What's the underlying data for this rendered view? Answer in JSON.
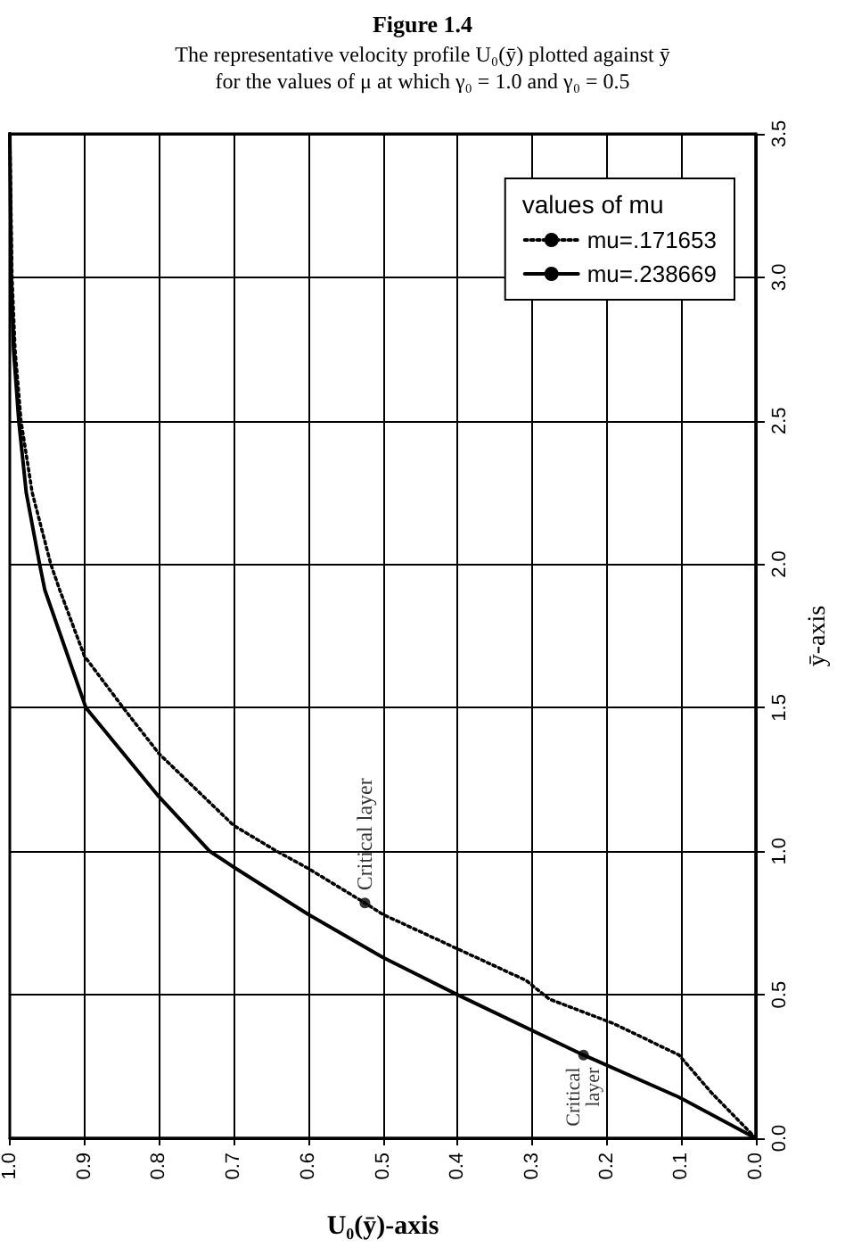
{
  "chart_data": {
    "type": "line",
    "title": "Figure 1.4",
    "subtitle": "The representative velocity profile U₀(ȳ) plotted against ȳ\nfor the values of μ at which γ₀ = 1.0 and γ₀ = 0.5",
    "xlabel": "U₀(ȳ)-axis",
    "ylabel": "ȳ-axis",
    "legend_title": "values of mu",
    "xlim": [
      1.0,
      0.0
    ],
    "xticks": [
      {
        "value": 1.0,
        "label": "1.0"
      },
      0.9,
      0.8,
      0.7,
      0.6,
      0.5,
      0.4,
      0.3,
      0.2,
      0.1,
      {
        "value": 0.0,
        "label": "0.0"
      }
    ],
    "ylim": [
      0,
      3.5
    ],
    "yticks": [
      {
        "value": 0,
        "label": "0.0"
      },
      0.5,
      {
        "value": 1,
        "label": "1.0"
      },
      1.5,
      {
        "value": 2,
        "label": "2.0"
      },
      2.5,
      {
        "value": 3,
        "label": "3.0"
      },
      3.5
    ],
    "series": [
      {
        "name": "mu=.171653",
        "color": "#000000",
        "line_style": "dotted",
        "x": [
          0,
          0.03,
          0.06,
          0.103,
          0.191,
          0.277,
          0.308,
          0.4,
          0.5,
          0.524,
          0.6,
          0.642,
          0.7,
          0.8,
          0.848,
          0.9,
          0.933,
          0.945,
          0.97,
          0.985,
          0.993,
          0.997,
          1.0
        ],
        "values": [
          0,
          0.08,
          0.16,
          0.29,
          0.4,
          0.485,
          0.55,
          0.66,
          0.78,
          0.82,
          0.94,
          1.0,
          1.09,
          1.34,
          1.5,
          1.68,
          1.91,
          2.0,
          2.25,
          2.5,
          2.75,
          3.0,
          3.5
        ]
      },
      {
        "name": "mu=.238669",
        "color": "#000000",
        "line_style": "solid",
        "x": [
          0,
          0.103,
          0.231,
          0.4,
          0.5,
          0.6,
          0.7,
          0.732,
          0.8,
          0.898,
          0.953,
          0.96,
          0.978,
          0.988,
          0.995,
          0.998,
          1.0
        ],
        "values": [
          0,
          0.143,
          0.29,
          0.5,
          0.63,
          0.78,
          0.945,
          1.0,
          1.19,
          1.5,
          1.91,
          2.0,
          2.25,
          2.5,
          2.75,
          3.0,
          3.5
        ]
      }
    ],
    "annotations": [
      {
        "text": "Critical layer",
        "x": 0.524,
        "y": 0.82
      },
      {
        "text": "Critical\nlayer",
        "x": 0.231,
        "y": 0.29
      }
    ],
    "grid": true,
    "legend": "top right",
    "marker": "none"
  }
}
